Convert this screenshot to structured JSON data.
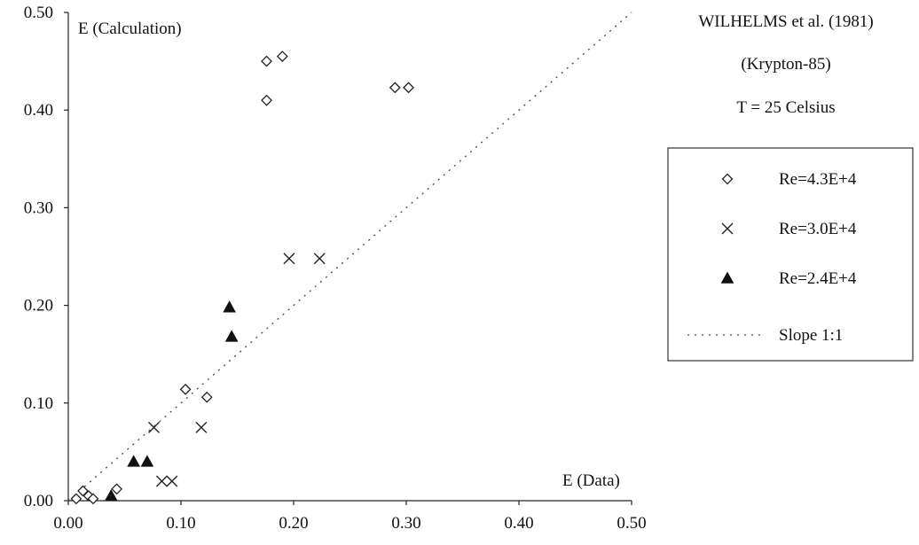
{
  "chart_data": {
    "type": "scatter",
    "title_lines": [
      "WILHELMS et al. (1981)",
      "(Krypton-85)",
      "T = 25 Celsius"
    ],
    "xlabel": "E (Data)",
    "ylabel": "E (Calculation)",
    "xlim": [
      0,
      0.5
    ],
    "ylim": [
      0,
      0.5
    ],
    "x_ticks": [
      "0.00",
      "0.10",
      "0.20",
      "0.30",
      "0.40",
      "0.50"
    ],
    "y_ticks": [
      "0.00",
      "0.10",
      "0.20",
      "0.30",
      "0.40",
      "0.50"
    ],
    "grid": false,
    "legend_position": "right",
    "series": [
      {
        "name": "Re=4.3E+4",
        "marker": "diamond-open",
        "points": [
          [
            0.007,
            0.002
          ],
          [
            0.013,
            0.01
          ],
          [
            0.018,
            0.005
          ],
          [
            0.022,
            0.002
          ],
          [
            0.043,
            0.012
          ],
          [
            0.104,
            0.114
          ],
          [
            0.123,
            0.106
          ],
          [
            0.176,
            0.41
          ],
          [
            0.176,
            0.45
          ],
          [
            0.19,
            0.455
          ],
          [
            0.29,
            0.423
          ],
          [
            0.302,
            0.423
          ]
        ]
      },
      {
        "name": "Re=3.0E+4",
        "marker": "cross",
        "points": [
          [
            0.076,
            0.075
          ],
          [
            0.083,
            0.02
          ],
          [
            0.092,
            0.02
          ],
          [
            0.118,
            0.075
          ],
          [
            0.196,
            0.248
          ],
          [
            0.223,
            0.248
          ]
        ]
      },
      {
        "name": "Re=2.4E+4",
        "marker": "triangle-filled",
        "points": [
          [
            0.038,
            0.005
          ],
          [
            0.058,
            0.04
          ],
          [
            0.07,
            0.04
          ],
          [
            0.143,
            0.198
          ],
          [
            0.145,
            0.168
          ]
        ]
      },
      {
        "name": "Slope 1:1",
        "marker": "dotted-line",
        "points": [
          [
            0.0,
            0.0
          ],
          [
            0.5,
            0.5
          ]
        ]
      }
    ]
  }
}
